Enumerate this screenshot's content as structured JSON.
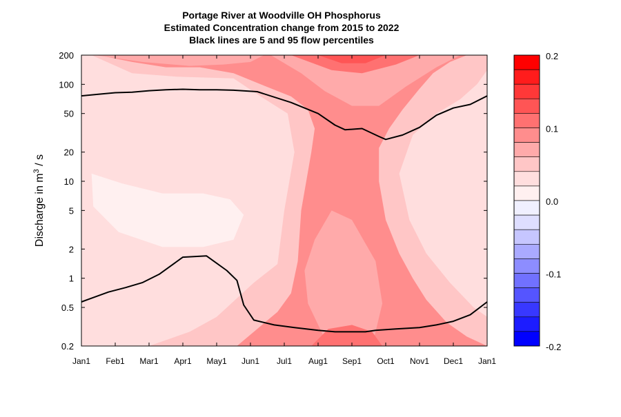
{
  "chart_data": {
    "type": "heatmap",
    "title_lines": [
      "Portage River at Woodville OH  Phosphorus",
      "Estimated Concentration change from 2015 to 2022",
      "Black lines are 5 and 95 flow percentiles"
    ],
    "ylabel": {
      "prefix": "Discharge in m",
      "sup": "3",
      "suffix": " / s"
    },
    "y_scale": "log",
    "ylim": [
      0.2,
      200
    ],
    "y_ticks": [
      {
        "label": "200",
        "value": 200
      },
      {
        "label": "100",
        "value": 100
      },
      {
        "label": "50",
        "value": 50
      },
      {
        "label": "20",
        "value": 20
      },
      {
        "label": "10",
        "value": 10
      },
      {
        "label": "5",
        "value": 5
      },
      {
        "label": "2",
        "value": 2
      },
      {
        "label": "1",
        "value": 1
      },
      {
        "label": "0.5",
        "value": 0.5
      },
      {
        "label": "0.2",
        "value": 0.2
      }
    ],
    "xlim": [
      0,
      12
    ],
    "x_ticks": [
      {
        "label": "Jan1",
        "value": 0
      },
      {
        "label": "Feb1",
        "value": 1
      },
      {
        "label": "Mar1",
        "value": 2
      },
      {
        "label": "Apr1",
        "value": 3
      },
      {
        "label": "May1",
        "value": 4
      },
      {
        "label": "Jun1",
        "value": 5
      },
      {
        "label": "Jul1",
        "value": 6
      },
      {
        "label": "Aug1",
        "value": 7
      },
      {
        "label": "Sep1",
        "value": 8
      },
      {
        "label": "Oct1",
        "value": 9
      },
      {
        "label": "Nov1",
        "value": 10
      },
      {
        "label": "Dec1",
        "value": 11
      },
      {
        "label": "Jan1",
        "value": 12
      }
    ],
    "colorbar": {
      "range": [
        -0.2,
        0.2
      ],
      "levels": [
        {
          "low": 0.18,
          "high": 0.2,
          "color": "#ff0000"
        },
        {
          "low": 0.16,
          "high": 0.18,
          "color": "#ff1c1c"
        },
        {
          "low": 0.14,
          "high": 0.16,
          "color": "#ff3838"
        },
        {
          "low": 0.12,
          "high": 0.14,
          "color": "#ff5555"
        },
        {
          "low": 0.1,
          "high": 0.12,
          "color": "#ff7171"
        },
        {
          "low": 0.08,
          "high": 0.1,
          "color": "#ff8d8d"
        },
        {
          "low": 0.06,
          "high": 0.08,
          "color": "#ffaaaa"
        },
        {
          "low": 0.04,
          "high": 0.06,
          "color": "#ffc6c6"
        },
        {
          "low": 0.02,
          "high": 0.04,
          "color": "#ffdede"
        },
        {
          "low": 0.0,
          "high": 0.02,
          "color": "#fff0f0"
        },
        {
          "low": -0.02,
          "high": 0.0,
          "color": "#f0f0ff"
        },
        {
          "low": -0.04,
          "high": -0.02,
          "color": "#dedeff"
        },
        {
          "low": -0.06,
          "high": -0.04,
          "color": "#c6c6ff"
        },
        {
          "low": -0.08,
          "high": -0.06,
          "color": "#aaaaff"
        },
        {
          "low": -0.1,
          "high": -0.08,
          "color": "#8d8dff"
        },
        {
          "low": -0.12,
          "high": -0.1,
          "color": "#7171ff"
        },
        {
          "low": -0.14,
          "high": -0.12,
          "color": "#5555ff"
        },
        {
          "low": -0.16,
          "high": -0.14,
          "color": "#3838ff"
        },
        {
          "low": -0.18,
          "high": -0.16,
          "color": "#1c1cff"
        },
        {
          "low": -0.2,
          "high": -0.18,
          "color": "#0000ff"
        }
      ],
      "tick_labels": [
        {
          "label": "0.2",
          "value": 0.2
        },
        {
          "label": "0.1",
          "value": 0.1
        },
        {
          "label": "0.0",
          "value": 0.0
        },
        {
          "label": "-0.1",
          "value": -0.1
        },
        {
          "label": "-0.2",
          "value": -0.2
        }
      ]
    },
    "regions": [
      {
        "level": 0.09,
        "points": [
          [
            0,
            200
          ],
          [
            12,
            200
          ],
          [
            12,
            0.2
          ],
          [
            0,
            0.2
          ]
        ]
      },
      {
        "level": 0.05,
        "points": [
          [
            0,
            200
          ],
          [
            0.5,
            200
          ],
          [
            1.5,
            170
          ],
          [
            2.5,
            150
          ],
          [
            3.5,
            150
          ],
          [
            4.5,
            130
          ],
          [
            5.3,
            100
          ],
          [
            6.2,
            75
          ],
          [
            6.7,
            55
          ],
          [
            6.9,
            35
          ],
          [
            6.8,
            20
          ],
          [
            6.5,
            5
          ],
          [
            6.4,
            1.5
          ],
          [
            6.2,
            0.7
          ],
          [
            5.8,
            0.45
          ],
          [
            5.2,
            0.3
          ],
          [
            4.6,
            0.2
          ],
          [
            0,
            0.2
          ]
        ]
      },
      {
        "level": 0.05,
        "points": [
          [
            12,
            200
          ],
          [
            11.4,
            200
          ],
          [
            10.9,
            170
          ],
          [
            10.4,
            130
          ],
          [
            10.0,
            90
          ],
          [
            9.5,
            55
          ],
          [
            9.1,
            35
          ],
          [
            8.8,
            22
          ],
          [
            8.8,
            10
          ],
          [
            9.0,
            4
          ],
          [
            9.4,
            1.8
          ],
          [
            9.8,
            1.0
          ],
          [
            10.2,
            0.6
          ],
          [
            10.8,
            0.35
          ],
          [
            11.4,
            0.25
          ],
          [
            12,
            0.2
          ]
        ]
      },
      {
        "level": 0.03,
        "points": [
          [
            0,
            200
          ],
          [
            0.3,
            200
          ],
          [
            1.5,
            130
          ],
          [
            2.8,
            120
          ],
          [
            4.5,
            115
          ],
          [
            5.3,
            75
          ],
          [
            6.1,
            50
          ],
          [
            6.3,
            20
          ],
          [
            6.0,
            5
          ],
          [
            5.8,
            1.4
          ],
          [
            5.1,
            0.9
          ],
          [
            4.0,
            0.4
          ],
          [
            3.2,
            0.28
          ],
          [
            2.0,
            0.2
          ],
          [
            0,
            0.2
          ]
        ]
      },
      {
        "level": 0.03,
        "points": [
          [
            12,
            140
          ],
          [
            11.7,
            100
          ],
          [
            11.2,
            70
          ],
          [
            10.5,
            50
          ],
          [
            9.8,
            30
          ],
          [
            9.4,
            12
          ],
          [
            9.7,
            4
          ],
          [
            10.2,
            1.8
          ],
          [
            10.9,
            0.9
          ],
          [
            11.6,
            0.5
          ],
          [
            12,
            0.4
          ]
        ]
      },
      {
        "level": 0.01,
        "points": [
          [
            0.3,
            12
          ],
          [
            1.2,
            9.5
          ],
          [
            2.4,
            7.5
          ],
          [
            3.6,
            7.5
          ],
          [
            4.4,
            6.5
          ],
          [
            4.8,
            4.5
          ],
          [
            4.5,
            2.5
          ],
          [
            3.6,
            2.1
          ],
          [
            2.4,
            2.1
          ],
          [
            1.1,
            3.0
          ],
          [
            0.35,
            5.5
          ]
        ]
      },
      {
        "level": 0.07,
        "points": [
          [
            0.4,
            200
          ],
          [
            1.8,
            170
          ],
          [
            3.2,
            155
          ],
          [
            4.2,
            160
          ],
          [
            5.0,
            170
          ],
          [
            5.4,
            200
          ]
        ]
      },
      {
        "level": 0.07,
        "points": [
          [
            5.6,
            200
          ],
          [
            6.5,
            130
          ],
          [
            7.2,
            85
          ],
          [
            8.0,
            60
          ],
          [
            8.8,
            60
          ],
          [
            9.6,
            95
          ],
          [
            10.5,
            150
          ],
          [
            11.2,
            200
          ]
        ]
      },
      {
        "level": 0.07,
        "points": [
          [
            7.3,
            0.2
          ],
          [
            6.7,
            0.55
          ],
          [
            6.6,
            1.2
          ],
          [
            6.9,
            2.5
          ],
          [
            7.4,
            5
          ],
          [
            8.0,
            4
          ],
          [
            8.7,
            1.5
          ],
          [
            8.9,
            0.55
          ],
          [
            8.6,
            0.2
          ]
        ]
      },
      {
        "level": 0.11,
        "points": [
          [
            6.2,
            200
          ],
          [
            7.4,
            140
          ],
          [
            8.3,
            130
          ],
          [
            9.3,
            160
          ],
          [
            10.0,
            200
          ]
        ]
      },
      {
        "level": 0.11,
        "points": [
          [
            6.8,
            0.2
          ],
          [
            7.3,
            0.3
          ],
          [
            8.0,
            0.33
          ],
          [
            8.6,
            0.28
          ],
          [
            8.9,
            0.2
          ]
        ]
      },
      {
        "level": 0.13,
        "points": [
          [
            7.0,
            200
          ],
          [
            7.7,
            165
          ],
          [
            8.4,
            165
          ],
          [
            9.0,
            200
          ]
        ]
      }
    ],
    "series": [
      {
        "name": "95 flow percentile",
        "points": [
          [
            0,
            76
          ],
          [
            0.5,
            79
          ],
          [
            1,
            82
          ],
          [
            1.5,
            83
          ],
          [
            2,
            86
          ],
          [
            2.5,
            88
          ],
          [
            3,
            89
          ],
          [
            3.5,
            88
          ],
          [
            4,
            88
          ],
          [
            4.5,
            87
          ],
          [
            5.2,
            84
          ],
          [
            6.2,
            65
          ],
          [
            7,
            50
          ],
          [
            7.5,
            38
          ],
          [
            7.8,
            34
          ],
          [
            8.3,
            35
          ],
          [
            8.8,
            29
          ],
          [
            9,
            27
          ],
          [
            9.5,
            30
          ],
          [
            10,
            36
          ],
          [
            10.5,
            48
          ],
          [
            11,
            57
          ],
          [
            11.5,
            62
          ],
          [
            12,
            76
          ]
        ]
      },
      {
        "name": "5 flow percentile",
        "points": [
          [
            0,
            0.57
          ],
          [
            0.8,
            0.72
          ],
          [
            1.3,
            0.8
          ],
          [
            1.8,
            0.9
          ],
          [
            2.3,
            1.1
          ],
          [
            3,
            1.65
          ],
          [
            3.7,
            1.7
          ],
          [
            4.3,
            1.2
          ],
          [
            4.6,
            0.95
          ],
          [
            4.8,
            0.53
          ],
          [
            5.1,
            0.37
          ],
          [
            5.7,
            0.33
          ],
          [
            6.3,
            0.31
          ],
          [
            7,
            0.29
          ],
          [
            7.5,
            0.28
          ],
          [
            8.4,
            0.28
          ],
          [
            8.7,
            0.29
          ],
          [
            9.3,
            0.3
          ],
          [
            10,
            0.31
          ],
          [
            10.5,
            0.33
          ],
          [
            11,
            0.36
          ],
          [
            11.5,
            0.42
          ],
          [
            12,
            0.57
          ]
        ]
      }
    ]
  }
}
